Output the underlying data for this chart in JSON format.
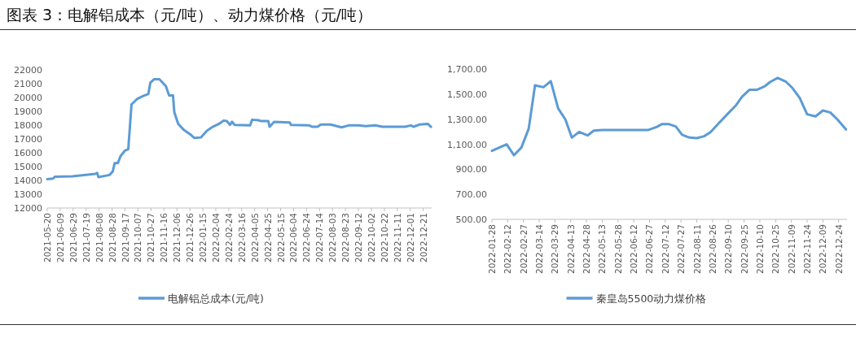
{
  "chart_data": [
    {
      "type": "line",
      "title": "图表 3：电解铝成本（元/吨）、动力煤价格（元/吨）",
      "legend": "bottom",
      "grid": false,
      "line_style": "solid",
      "xlim": [
        "2021-05-20",
        "2023-01-03"
      ],
      "xticks": [
        "2021-05-20",
        "2021-06-09",
        "2021-06-29",
        "2021-07-19",
        "2021-08-08",
        "2021-08-28",
        "2021-09-17",
        "2021-10-07",
        "2021-10-27",
        "2021-11-16",
        "2021-12-06",
        "2021-12-26",
        "2022-01-15",
        "2022-02-04",
        "2022-02-24",
        "2022-03-16",
        "2022-04-05",
        "2022-04-25",
        "2022-05-15",
        "2022-06-04",
        "2022-06-24",
        "2022-07-14",
        "2022-08-03",
        "2022-08-23",
        "2022-09-12",
        "2022-10-02",
        "2022-10-22",
        "2022-11-11",
        "2022-12-01",
        "2022-12-21"
      ],
      "ylim": [
        12000,
        22000
      ],
      "yticks": [
        12000,
        13000,
        14000,
        15000,
        16000,
        17000,
        18000,
        19000,
        20000,
        21000,
        22000
      ],
      "series": [
        {
          "name": "电解铝总成本(元/吨)",
          "color": "#5b9bd5",
          "x": [
            "2021-05-20",
            "2021-05-29",
            "2021-06-01",
            "2021-06-28",
            "2021-08-02",
            "2021-08-05",
            "2021-08-07",
            "2021-08-24",
            "2021-08-29",
            "2021-09-01",
            "2021-09-06",
            "2021-09-10",
            "2021-09-17",
            "2021-09-22",
            "2021-09-27",
            "2021-10-06",
            "2021-10-15",
            "2021-10-23",
            "2021-10-26",
            "2021-11-01",
            "2021-11-09",
            "2021-11-19",
            "2021-11-24",
            "2021-11-30",
            "2021-12-02",
            "2021-12-08",
            "2021-12-17",
            "2021-12-26",
            "2022-01-02",
            "2022-01-12",
            "2022-01-21",
            "2022-01-29",
            "2022-02-09",
            "2022-02-16",
            "2022-02-21",
            "2022-02-26",
            "2022-03-01",
            "2022-03-05",
            "2022-03-29",
            "2022-04-01",
            "2022-04-11",
            "2022-04-15",
            "2022-04-26",
            "2022-04-28",
            "2022-05-05",
            "2022-05-29",
            "2022-05-31",
            "2022-06-28",
            "2022-07-03",
            "2022-07-11",
            "2022-07-16",
            "2022-07-31",
            "2022-08-17",
            "2022-08-28",
            "2022-09-12",
            "2022-09-23",
            "2022-10-08",
            "2022-10-19",
            "2022-11-23",
            "2022-12-02",
            "2022-12-06",
            "2022-12-15",
            "2022-12-28",
            "2023-01-02"
          ],
          "values": [
            14090,
            14130,
            14270,
            14290,
            14470,
            14540,
            14230,
            14390,
            14640,
            15250,
            15250,
            15750,
            16160,
            16260,
            19500,
            19910,
            20110,
            20260,
            21070,
            21330,
            21330,
            20820,
            20150,
            20150,
            18940,
            18090,
            17640,
            17360,
            17070,
            17110,
            17580,
            17840,
            18090,
            18330,
            18290,
            18020,
            18250,
            18020,
            17980,
            18390,
            18350,
            18290,
            18290,
            17880,
            18230,
            18190,
            18020,
            17980,
            17880,
            17880,
            18040,
            18040,
            17840,
            17980,
            17980,
            17920,
            17980,
            17880,
            17880,
            17980,
            17880,
            18040,
            18090,
            17880
          ]
        }
      ]
    },
    {
      "type": "line",
      "legend": "bottom",
      "grid": false,
      "line_style": "solid",
      "xlim": [
        "2022-01-28",
        "2023-01-01"
      ],
      "xticks": [
        "2022-01-28",
        "2022-02-12",
        "2022-02-27",
        "2022-03-14",
        "2022-03-29",
        "2022-04-13",
        "2022-04-28",
        "2022-05-13",
        "2022-05-28",
        "2022-06-12",
        "2022-06-27",
        "2022-07-12",
        "2022-07-27",
        "2022-08-11",
        "2022-08-26",
        "2022-09-10",
        "2022-09-25",
        "2022-10-10",
        "2022-10-25",
        "2022-11-09",
        "2022-11-24",
        "2022-12-09",
        "2022-12-24"
      ],
      "ylim": [
        500,
        1700
      ],
      "yticks": [
        {
          "value": 500,
          "label": "500.00"
        },
        {
          "value": 700,
          "label": "700.00"
        },
        {
          "value": 900,
          "label": "900.00"
        },
        {
          "value": 1100,
          "label": "1,100.00"
        },
        {
          "value": 1300,
          "label": "1,300.00"
        },
        {
          "value": 1500,
          "label": "1,500.00"
        },
        {
          "value": 1700,
          "label": "1,700.00"
        }
      ],
      "series": [
        {
          "name": "秦皇岛5500动力煤价格",
          "color": "#5b9bd5",
          "x": [
            "2022-01-28",
            "2022-02-11",
            "2022-02-18",
            "2022-02-25",
            "2022-03-04",
            "2022-03-10",
            "2022-03-18",
            "2022-03-25",
            "2022-04-01",
            "2022-04-08",
            "2022-04-14",
            "2022-04-21",
            "2022-04-29",
            "2022-05-05",
            "2022-05-13",
            "2022-06-26",
            "2022-07-04",
            "2022-07-09",
            "2022-07-15",
            "2022-07-22",
            "2022-07-28",
            "2022-08-04",
            "2022-08-11",
            "2022-08-18",
            "2022-08-24",
            "2022-09-01",
            "2022-09-09",
            "2022-09-17",
            "2022-09-23",
            "2022-09-30",
            "2022-10-07",
            "2022-10-14",
            "2022-10-20",
            "2022-10-27",
            "2022-11-04",
            "2022-11-10",
            "2022-11-17",
            "2022-11-24",
            "2022-12-02",
            "2022-12-09",
            "2022-12-16",
            "2022-12-23",
            "2022-12-31"
          ],
          "values": [
            1047,
            1099,
            1012,
            1073,
            1224,
            1570,
            1555,
            1603,
            1386,
            1296,
            1153,
            1198,
            1170,
            1209,
            1214,
            1214,
            1239,
            1261,
            1261,
            1242,
            1175,
            1153,
            1149,
            1164,
            1196,
            1268,
            1339,
            1408,
            1479,
            1534,
            1534,
            1559,
            1598,
            1629,
            1598,
            1549,
            1469,
            1339,
            1322,
            1369,
            1354,
            1296,
            1218
          ]
        }
      ]
    }
  ]
}
